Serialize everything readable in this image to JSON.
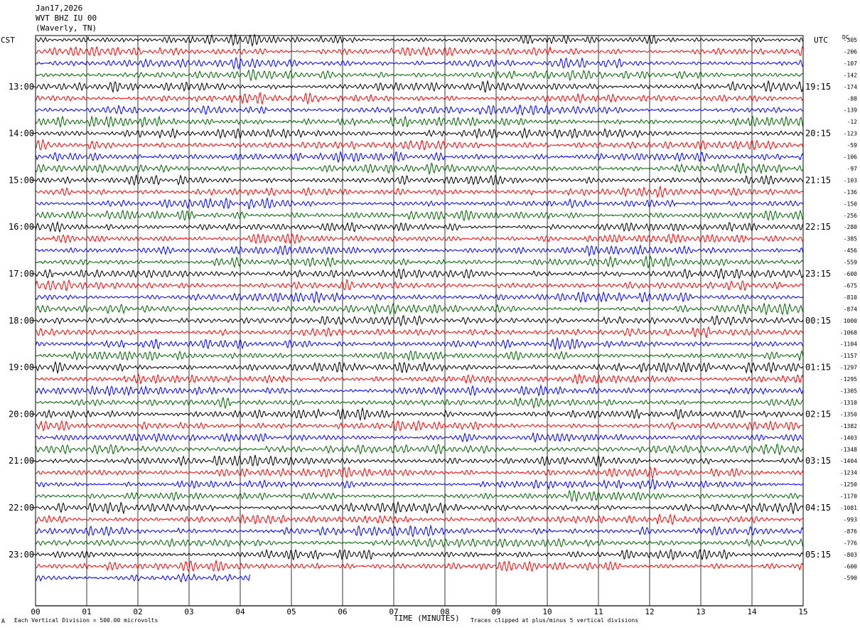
{
  "header": {
    "date": "Jan17,2026",
    "station": "WVT BHZ IU 00",
    "location": "(Waverly, TN)"
  },
  "left_zone": "CST",
  "right_zone": "UTC",
  "dc_label": "DC",
  "footer": {
    "scale": "Each Vertical Division =  500.00 microvolts",
    "clip": "Traces clipped at plus/minus 5 vertical divisions",
    "mark": "A"
  },
  "chart_data": {
    "type": "line",
    "title": "",
    "xlabel": "TIME (MINUTES)",
    "x_ticks": [
      "00",
      "01",
      "02",
      "03",
      "04",
      "05",
      "06",
      "07",
      "08",
      "09",
      "10",
      "11",
      "12",
      "13",
      "14",
      "15"
    ],
    "xlim": [
      0,
      15
    ],
    "left_hour_labels": [
      "13:00",
      "14:00",
      "15:00",
      "16:00",
      "17:00",
      "18:00",
      "19:00",
      "20:00",
      "21:00",
      "22:00",
      "23:00"
    ],
    "right_hour_labels": [
      "19:15",
      "20:15",
      "21:15",
      "22:15",
      "23:15",
      "00:15",
      "01:15",
      "02:15",
      "03:15",
      "04:15",
      "05:15"
    ],
    "trace_colors": [
      "#000000",
      "#ff0000",
      "#0000ff",
      "#006400"
    ],
    "trace_count": 47,
    "last_trace_end_minute": 4.2,
    "dc_offsets": [
      "-305",
      "-206",
      "-107",
      "-142",
      "-174",
      "-88",
      "-139",
      "-12",
      "-123",
      "-59",
      "-106",
      "-97",
      "-103",
      "-136",
      "-150",
      "-256",
      "-280",
      "-385",
      "-456",
      "-559",
      "-600",
      "-675",
      "-810",
      "-874",
      "1000",
      "-1068",
      "-1104",
      "-1157",
      "-1297",
      "-1295",
      "-1305",
      "-1310",
      "-1350",
      "-1382",
      "-1403",
      "-1348",
      "-1404",
      "-1234",
      "-1250",
      "-1170",
      "-1081",
      "-993",
      "-876",
      "-776",
      "-803",
      "-600",
      "-590"
    ]
  }
}
